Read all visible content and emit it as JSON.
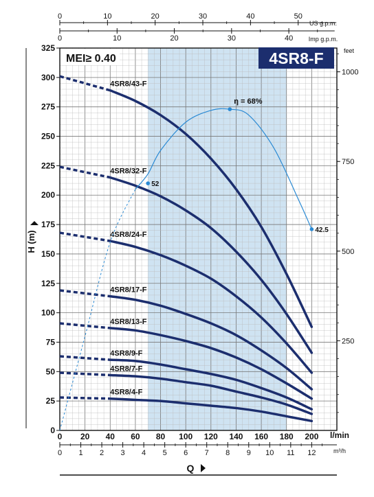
{
  "chart_data": {
    "type": "line",
    "title": "4SR8-F",
    "badge": "MEI≥ 0.40",
    "xlabel": "Q",
    "ylabel": "H (m)",
    "x_unit": "l/min",
    "x_unit_m3h": "m³/h",
    "x_unit_usgpm": "US g.p.m.",
    "x_unit_impgpm": "Imp g.p.m.",
    "y_unit_feet": "feet",
    "xlim": [
      0,
      220
    ],
    "ylim": [
      0,
      325
    ],
    "x_ticks_lmin": [
      "0",
      "20",
      "40",
      "60",
      "80",
      "100",
      "120",
      "140",
      "160",
      "180",
      "200"
    ],
    "x_ticks_m3h": [
      "0",
      "1",
      "2",
      "3",
      "4",
      "5",
      "6",
      "7",
      "8",
      "9",
      "10",
      "11",
      "12"
    ],
    "x_ticks_usgpm": [
      "0",
      "10",
      "20",
      "30",
      "40",
      "50"
    ],
    "x_ticks_impgpm": [
      "0",
      "10",
      "20",
      "30",
      "40"
    ],
    "y_ticks": [
      "0",
      "25",
      "50",
      "75",
      "100",
      "125",
      "150",
      "175",
      "200",
      "225",
      "250",
      "275",
      "300",
      "325"
    ],
    "y_ticks_feet": [
      "250",
      "500",
      "750",
      "1000"
    ],
    "recommended_range_lmin": [
      70,
      180
    ],
    "grid": true,
    "series": [
      {
        "name": "4SR8/43-F",
        "x": [
          0,
          40,
          60,
          80,
          100,
          120,
          140,
          160,
          180,
          200
        ],
        "y": [
          301,
          289,
          280,
          268,
          252,
          231,
          205,
          173,
          133,
          88
        ]
      },
      {
        "name": "4SR8/32-F",
        "x": [
          0,
          40,
          60,
          80,
          100,
          120,
          140,
          160,
          180,
          200
        ],
        "y": [
          224,
          215,
          208,
          199,
          187,
          172,
          152,
          128,
          99,
          66
        ]
      },
      {
        "name": "4SR8/24-F",
        "x": [
          0,
          40,
          60,
          80,
          100,
          120,
          140,
          160,
          180,
          200
        ],
        "y": [
          168,
          161,
          156,
          149,
          140,
          129,
          114,
          96,
          74,
          49
        ]
      },
      {
        "name": "4SR8/17-F",
        "x": [
          0,
          40,
          60,
          80,
          100,
          120,
          140,
          160,
          180,
          200
        ],
        "y": [
          119,
          114,
          111,
          106,
          99,
          91,
          81,
          68,
          53,
          35
        ]
      },
      {
        "name": "4SR8/13-F",
        "x": [
          0,
          40,
          60,
          80,
          100,
          120,
          140,
          160,
          180,
          200
        ],
        "y": [
          91,
          87,
          85,
          81,
          76,
          70,
          62,
          52,
          40,
          27
        ]
      },
      {
        "name": "4SR8/9-F",
        "x": [
          0,
          40,
          60,
          80,
          100,
          120,
          140,
          160,
          180,
          200
        ],
        "y": [
          63,
          60,
          59,
          56,
          52,
          48,
          43,
          36,
          28,
          18
        ]
      },
      {
        "name": "4SR8/7-F",
        "x": [
          0,
          40,
          60,
          80,
          100,
          120,
          140,
          160,
          180,
          200
        ],
        "y": [
          49,
          47,
          46,
          44,
          41,
          38,
          33,
          28,
          22,
          14
        ]
      },
      {
        "name": "4SR8/4-F",
        "x": [
          0,
          40,
          60,
          80,
          100,
          120,
          140,
          160,
          180,
          200
        ],
        "y": [
          28,
          27,
          26,
          25,
          23,
          21,
          19,
          16,
          12,
          8
        ]
      }
    ],
    "efficiency_curve": {
      "label": "η = 68%",
      "x": [
        0,
        20,
        40,
        60,
        70,
        80,
        100,
        120,
        135,
        150,
        170,
        190,
        200
      ],
      "y": [
        0,
        80,
        160,
        205,
        218,
        238,
        262,
        272,
        273,
        268,
        240,
        195,
        171
      ],
      "point_labels": [
        {
          "text": "52",
          "x": 70,
          "y": 210
        },
        {
          "text": "η = 68%",
          "x": 135,
          "y": 273
        },
        {
          "text": "42.5",
          "x": 200,
          "y": 171
        }
      ]
    }
  }
}
